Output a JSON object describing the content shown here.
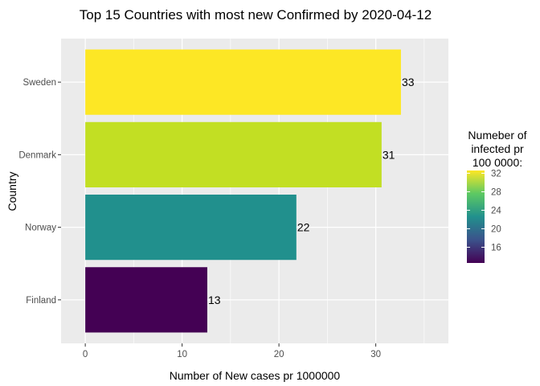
{
  "chart_data": {
    "type": "bar",
    "orientation": "horizontal",
    "title": "Top 15 Countries with most new Confirmed by 2020-04-12",
    "xlabel": "Number of New cases pr 1000000",
    "ylabel": "Country",
    "categories": [
      "Sweden",
      "Denmark",
      "Norway",
      "Finland"
    ],
    "values": [
      32.6,
      30.6,
      21.8,
      12.6
    ],
    "data_labels": [
      "33",
      "31",
      "22",
      "13"
    ],
    "colors": [
      "#fde725",
      "#c2df23",
      "#21908d",
      "#440154"
    ],
    "xlim": [
      -2.5,
      37.5
    ],
    "x_ticks": [
      0,
      10,
      20,
      30
    ],
    "x_tick_labels": [
      "0",
      "10",
      "20",
      "30"
    ],
    "grid": true,
    "panel_background": "#ebebeb",
    "legend": {
      "title_lines": [
        "Numeber of",
        "infected pr",
        "100 0000:"
      ],
      "placement": "right",
      "range": [
        12.6,
        32.6
      ],
      "ticks": [
        16,
        20,
        24,
        28,
        32
      ],
      "tick_labels": [
        "16",
        "20",
        "24",
        "28",
        "32"
      ],
      "gradient": [
        "#440154",
        "#3b528b",
        "#21908d",
        "#5dc963",
        "#fde725"
      ]
    }
  }
}
